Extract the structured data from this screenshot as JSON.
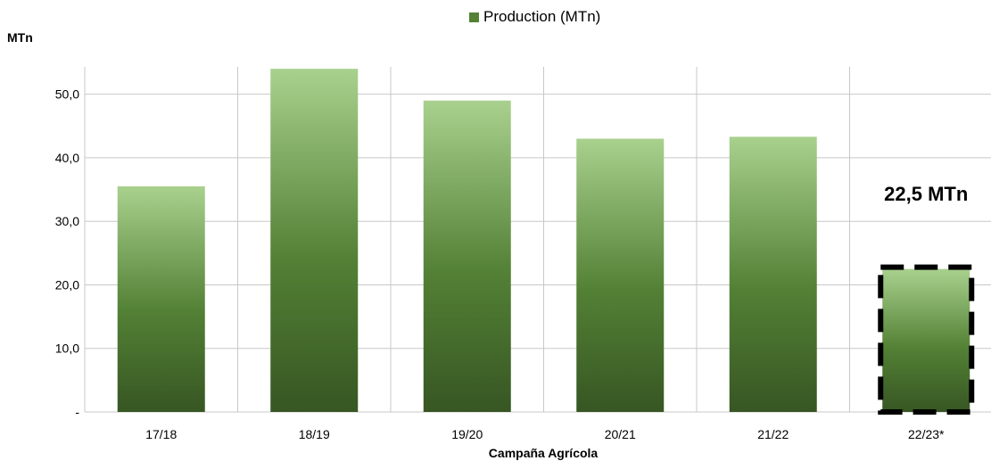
{
  "chart_data": {
    "type": "bar",
    "legend": {
      "label": "Production (MTn)",
      "placement": "top-center"
    },
    "ylabel": "MTn",
    "xlabel": "Campaña Agrícola",
    "categories": [
      "17/18",
      "18/19",
      "19/20",
      "20/21",
      "21/22",
      "22/23*"
    ],
    "series": [
      {
        "name": "Production (MTn)",
        "values": [
          35.5,
          54.0,
          49.0,
          43.0,
          43.3,
          22.5
        ]
      }
    ],
    "ylim": [
      0,
      54.3
    ],
    "yticks": [
      {
        "value": 0,
        "label": "-"
      },
      {
        "value": 10,
        "label": "10,0"
      },
      {
        "value": 20,
        "label": "20,0"
      },
      {
        "value": 30,
        "label": "30,0"
      },
      {
        "value": 40,
        "label": "40,0"
      },
      {
        "value": 50,
        "label": "50,0"
      }
    ],
    "grid": true,
    "highlight": {
      "category": "22/23*",
      "style": "dashed-border",
      "annotation": "22,5 MTn"
    },
    "colors": {
      "bar_top": "#a9d18e",
      "bar_mid": "#538135",
      "bar_bottom": "#375623",
      "grid": "#c8c8c8"
    }
  }
}
